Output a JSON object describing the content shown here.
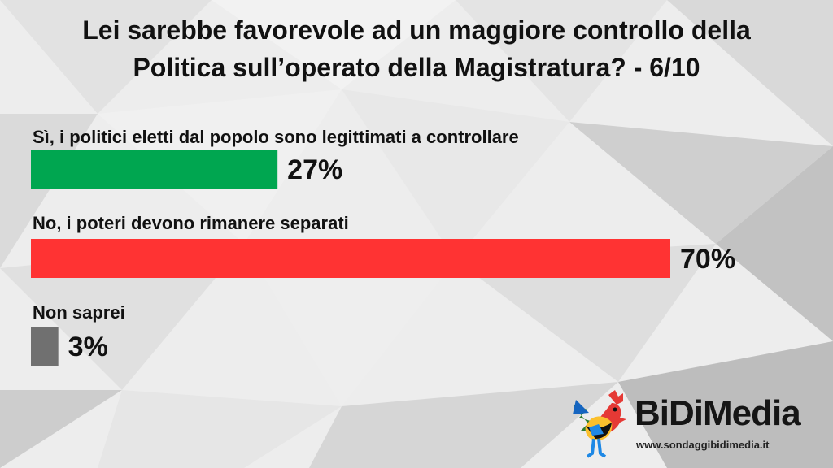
{
  "title": {
    "line1": "Lei sarebbe favorevole ad un maggiore controllo della",
    "line2": "Politica sull’operato della Magistratura? - 6/10"
  },
  "chart_data": {
    "type": "bar",
    "orientation": "horizontal",
    "categories": [
      "Sì, i politici eletti dal popolo sono legittimati a controllare",
      "No, i poteri devono rimanere separati",
      "Non saprei"
    ],
    "values": [
      27,
      70,
      3
    ],
    "value_labels": [
      "27%",
      "70%",
      "3%"
    ],
    "colors": [
      "#00a650",
      "#ff3333",
      "#707070"
    ],
    "xlim": [
      0,
      70
    ],
    "grid": false,
    "legend": "none"
  },
  "logo": {
    "brand": "BiDiMedia",
    "site": "www.sondaggibidimedia.it"
  }
}
